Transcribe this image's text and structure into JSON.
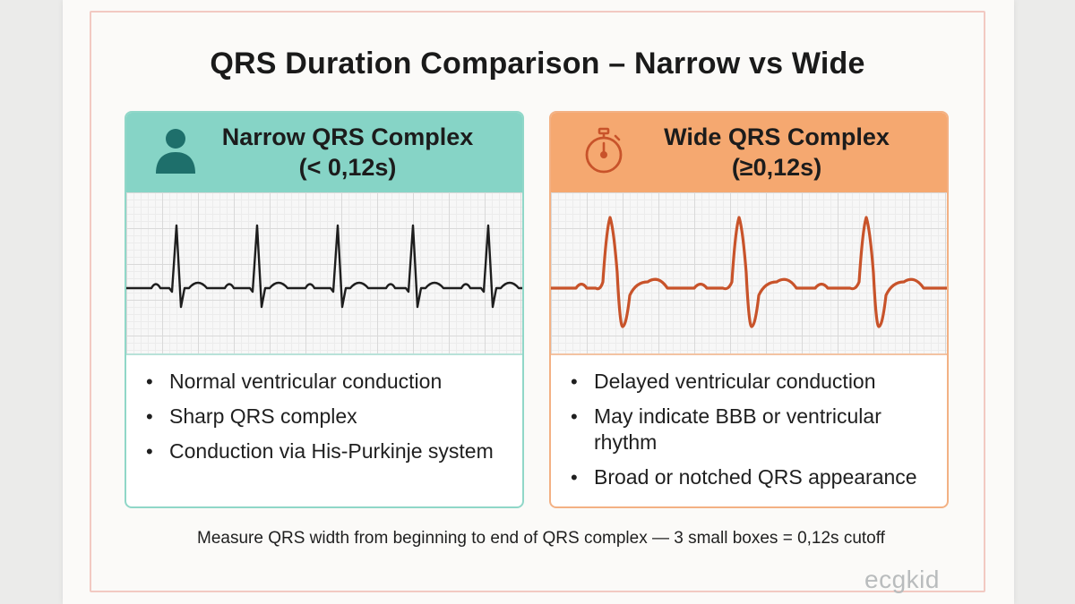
{
  "title": "QRS Duration Comparison – Narrow vs Wide",
  "narrow": {
    "title_line1": "Narrow QRS Complex",
    "title_line2": "(< 0,12s)",
    "icon": "person-icon",
    "color": "#86d4c6",
    "trace_color": "#1e1e1e",
    "bullets": [
      "Normal ventricular conduction",
      "Sharp QRS complex",
      "Conduction via His-Purkinje system"
    ]
  },
  "wide": {
    "title_line1": "Wide QRS Complex",
    "title_line2": "(≥0,12s)",
    "icon": "stopwatch-icon",
    "color": "#f5a870",
    "trace_color": "#c8532a",
    "bullets": [
      "Delayed ventricular conduction",
      "May indicate BBB or ventricular rhythm",
      "Broad or notched QRS appearance"
    ]
  },
  "footnote": "Measure QRS width from beginning to end of QRS complex — 3 small boxes = 0,12s cutoff",
  "watermark": "ecgkid"
}
